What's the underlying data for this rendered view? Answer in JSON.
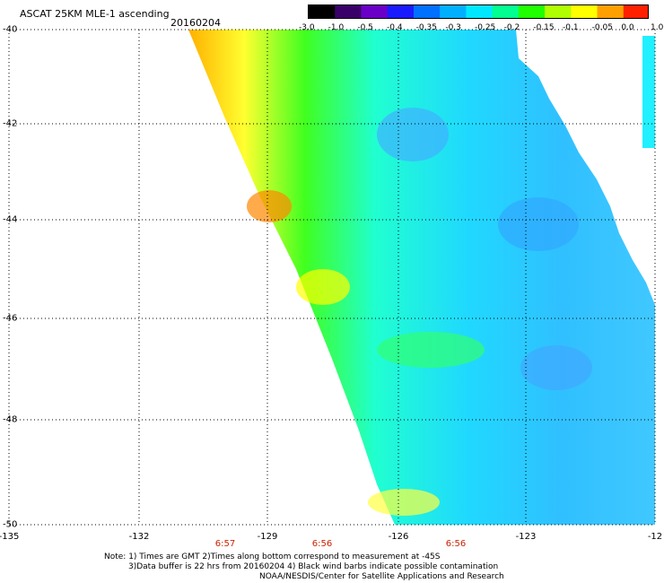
{
  "header": {
    "title": "ASCAT 25KM MLE-1 ascending",
    "date": "20160204"
  },
  "colorbar": {
    "labels": [
      "-3.0",
      "-1.0",
      "-0.5",
      "-0.4",
      "-0.35",
      "-0.3",
      "-0.25",
      "-0.2",
      "-0.15",
      "-0.1",
      "-0.05",
      "0.0",
      "1.0"
    ],
    "colors": [
      "#000000",
      "#3a006a",
      "#6a00c8",
      "#1a1aff",
      "#0070ff",
      "#00b0ff",
      "#00e8ff",
      "#00ff90",
      "#20ff00",
      "#b0ff00",
      "#ffff00",
      "#ffa000",
      "#ff2000"
    ]
  },
  "map": {
    "longitude_labels": [
      "-135",
      "-132",
      "-129",
      "-126",
      "-123",
      "-12"
    ],
    "latitude_labels": [
      "-40",
      "-42",
      "-44",
      "-46",
      "-48",
      "-50"
    ],
    "time_labels": [
      "6:57",
      "6:56",
      "6:56"
    ]
  },
  "notes": {
    "line1": "Note: 1) Times are GMT 2)Times along bottom correspond to measurement at -45S",
    "line2": "3)Data buffer is 22 hrs from 20160204 4) Black wind barbs indicate possible contamination",
    "line3": "NOAA/NESDIS/Center for Satellite Applications and Research"
  }
}
